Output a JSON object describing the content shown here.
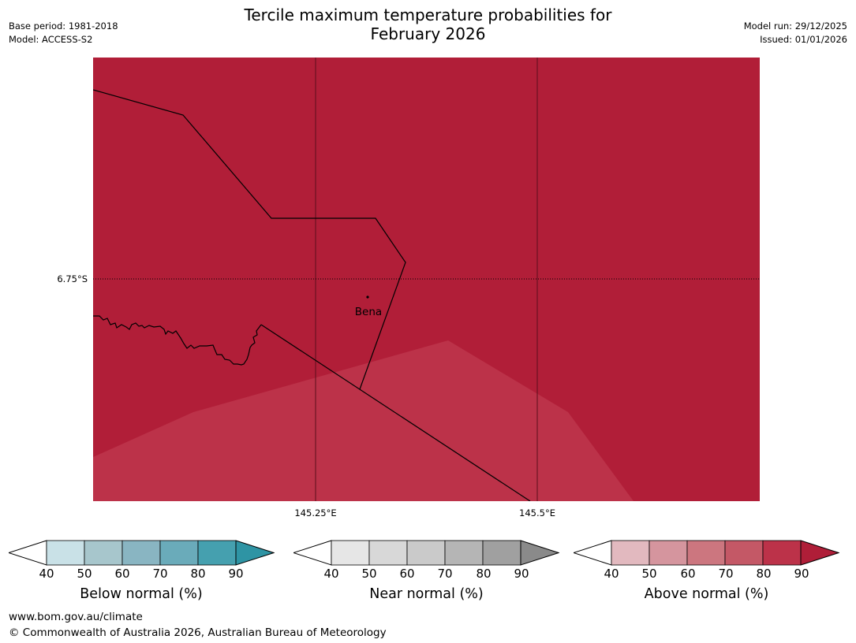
{
  "header": {
    "title_line1": "Tercile maximum temperature probabilities for",
    "title_line2": "February 2026",
    "base_period": "Base period: 1981-2018",
    "model": "Model: ACCESS-S2",
    "model_run": "Model run: 29/12/2025",
    "issued": "Issued: 01/01/2026"
  },
  "map": {
    "place_label": "Bena",
    "lat_label": "6.75°S",
    "lon_labels": [
      "145.25°E",
      "145.5°E"
    ],
    "fill_colors": {
      "primary": "#B11E38",
      "secondary": "#BC3249"
    }
  },
  "colorbars": [
    {
      "title": "Below normal (%)",
      "ticks": [
        "40",
        "50",
        "60",
        "70",
        "80",
        "90"
      ],
      "colors": [
        "#C9E1E7",
        "#A7C6CC",
        "#89B5C2",
        "#6AABBA",
        "#45A0AF",
        "#2E94A4"
      ]
    },
    {
      "title": "Near normal (%)",
      "ticks": [
        "40",
        "50",
        "60",
        "70",
        "80",
        "90"
      ],
      "colors": [
        "#E6E6E6",
        "#D8D8D8",
        "#CACACA",
        "#B5B5B5",
        "#A0A0A0",
        "#8A8A8A"
      ]
    },
    {
      "title": "Above normal (%)",
      "ticks": [
        "40",
        "50",
        "60",
        "70",
        "80",
        "90"
      ],
      "colors": [
        "#E2B9BF",
        "#D5959E",
        "#CC767F",
        "#C45866",
        "#BC3249",
        "#AF1E38"
      ]
    }
  ],
  "footer": {
    "url": "www.bom.gov.au/climate",
    "copyright": "© Commonwealth of Australia 2026, Australian Bureau of Meteorology"
  }
}
